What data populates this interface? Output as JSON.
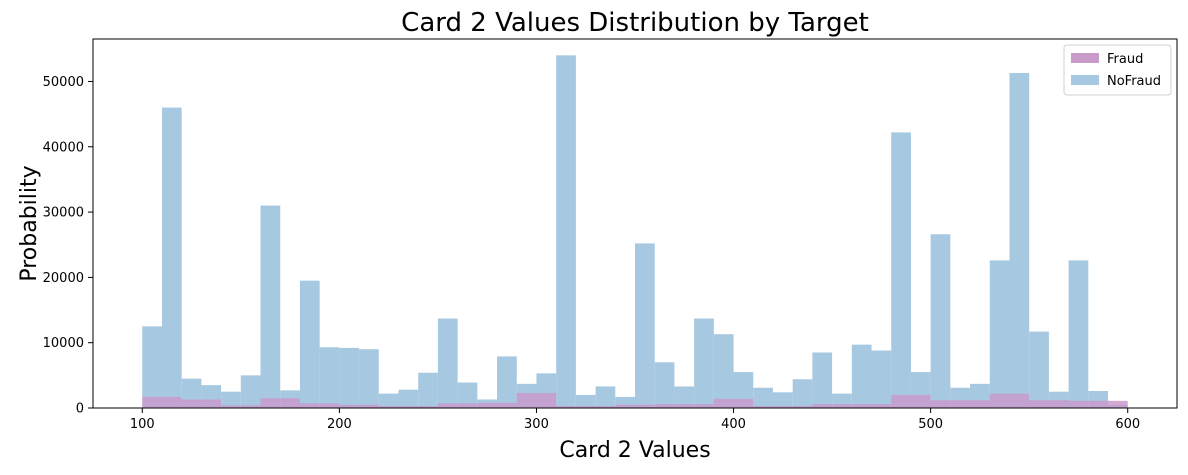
{
  "chart_data": {
    "type": "bar",
    "title": "Card 2 Values Distribution by Target",
    "xlabel": "Card 2 Values",
    "ylabel": "Probability",
    "xlim": [
      75,
      625
    ],
    "ylim": [
      0,
      56500
    ],
    "xticks": [
      100,
      200,
      300,
      400,
      500,
      600
    ],
    "yticks": [
      0,
      10000,
      20000,
      30000,
      40000,
      50000
    ],
    "grid": false,
    "legend_position": "top-right",
    "bin_start": 100,
    "bin_width": 10,
    "series": [
      {
        "name": "NoFraud",
        "color": "#a6c8e0",
        "values": [
          12500,
          46000,
          4500,
          3500,
          2500,
          5000,
          31000,
          2700,
          19500,
          9300,
          9200,
          9000,
          2200,
          2800,
          5400,
          13700,
          3900,
          1300,
          7900,
          3700,
          5300,
          54000,
          2000,
          3300,
          1700,
          25200,
          7000,
          3300,
          13700,
          11300,
          5500,
          3100,
          2400,
          4400,
          8500,
          2200,
          9700,
          8800,
          42200,
          5500,
          26600,
          3100,
          3700,
          22600,
          51300,
          11700,
          2500,
          22600,
          2600,
          500
        ]
      },
      {
        "name": "Fraud",
        "color": "#c89bcb",
        "values": [
          1700,
          1700,
          1300,
          1300,
          400,
          400,
          1500,
          1500,
          700,
          700,
          500,
          500,
          300,
          300,
          300,
          700,
          700,
          800,
          800,
          2300,
          2300,
          300,
          300,
          300,
          500,
          500,
          600,
          600,
          600,
          1400,
          1400,
          300,
          300,
          300,
          600,
          600,
          600,
          600,
          2000,
          2000,
          1200,
          1200,
          1200,
          2200,
          2200,
          1200,
          1200,
          1100,
          1100,
          1100
        ]
      }
    ]
  }
}
